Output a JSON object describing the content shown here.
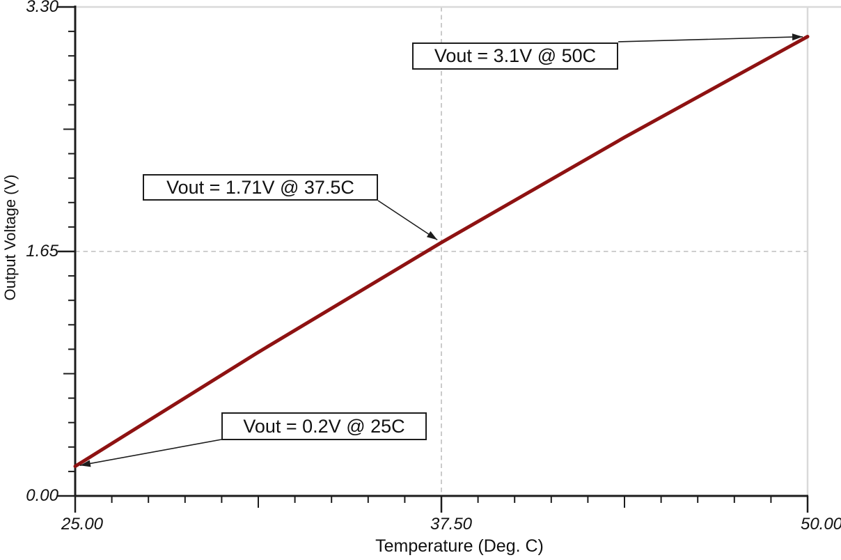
{
  "chart_data": {
    "type": "line",
    "title": "",
    "xlabel": "Temperature (Deg. C)",
    "ylabel": "Output Voltage (V)",
    "xlim": [
      25,
      50
    ],
    "ylim": [
      0,
      3.3
    ],
    "x_ticks": {
      "values": [
        25,
        37.5,
        50
      ],
      "labels": [
        "25.00",
        "37.50",
        "50.00"
      ]
    },
    "y_ticks": {
      "values": [
        0,
        1.65,
        3.3
      ],
      "labels": [
        "0.00",
        "1.65",
        "3.30"
      ]
    },
    "x_minor_step": 1.25,
    "y_minor_step": 0.165,
    "grid": {
      "style": "dashed",
      "x_values": [
        37.5
      ],
      "y_values": [
        1.65
      ]
    },
    "legend_position": "none",
    "series": [
      {
        "name": "Vout",
        "color": "#8e1212",
        "points": [
          [
            25,
            0.2
          ],
          [
            31.25,
            0.97
          ],
          [
            37.5,
            1.71
          ],
          [
            43.75,
            2.42
          ],
          [
            50,
            3.1
          ]
        ]
      }
    ],
    "annotations": [
      {
        "label": "Vout = 3.1V @ 50C",
        "target_x": 50,
        "target_y": 3.1
      },
      {
        "label": "Vout = 1.71V @ 37.5C",
        "target_x": 37.5,
        "target_y": 1.71
      },
      {
        "label": "Vout = 0.2V @ 25C",
        "target_x": 25,
        "target_y": 0.2
      }
    ],
    "colors": {
      "axis": "#1c1c1c",
      "frame": "#d9d9d9",
      "grid": "#bdbdbd",
      "series": "#8e1212",
      "text": "#111111"
    }
  }
}
